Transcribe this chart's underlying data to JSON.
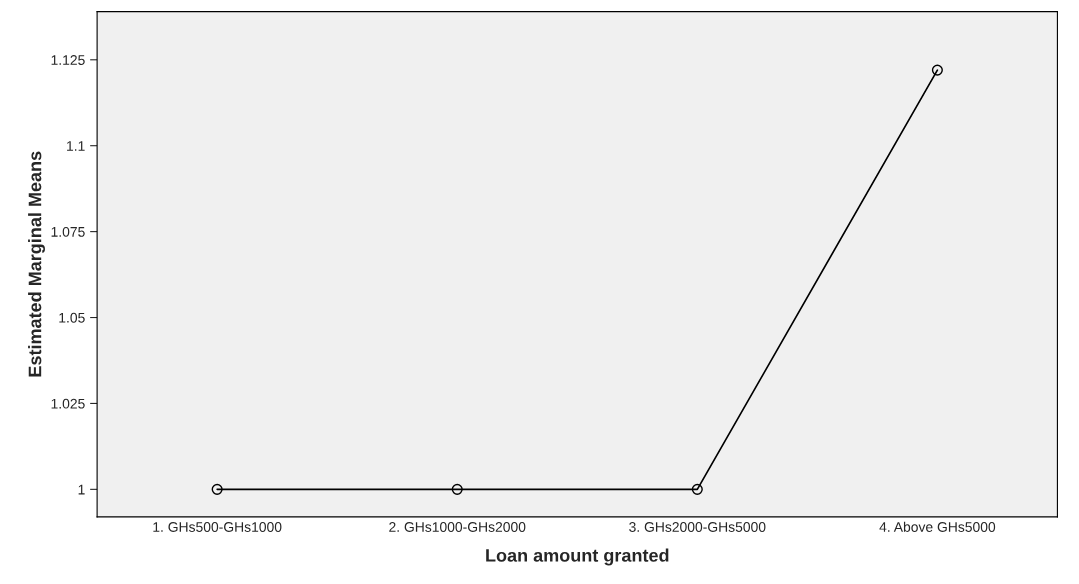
{
  "chart_data": {
    "type": "line",
    "xlabel": "Loan amount granted",
    "ylabel": "Estimated Marginal Means",
    "categories": [
      "1. GHs500-GHs1000",
      "2. GHs1000-GHs2000",
      "3. GHs2000-GHs5000",
      "4. Above GHs5000"
    ],
    "series": [
      {
        "color": "#000000",
        "values": [
          1.0,
          1.0,
          1.0,
          1.122
        ]
      }
    ],
    "ylim": [
      0.992,
      1.139
    ],
    "yticks": [
      1,
      1.025,
      1.05,
      1.075,
      1.1,
      1.125
    ],
    "marker": "circle",
    "line_style": "solid",
    "grid": false,
    "legend": false
  }
}
